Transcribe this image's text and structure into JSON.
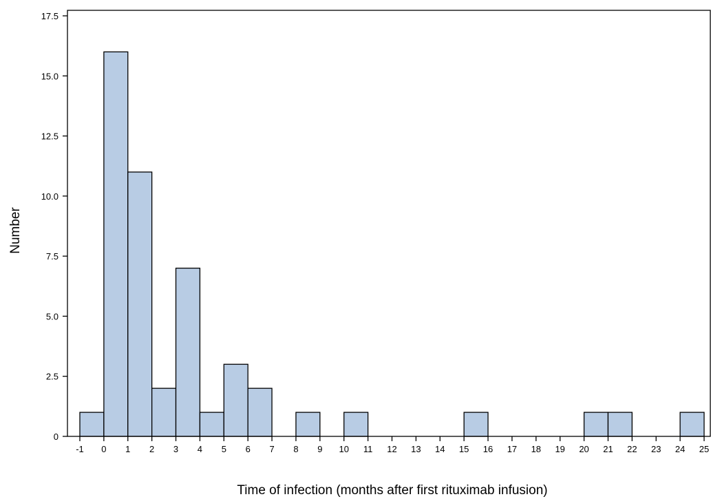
{
  "chart_data": {
    "type": "bar",
    "title": "",
    "xlabel": "Time of infection (months after first rituximab infusion)",
    "ylabel": "Number",
    "xlim": [
      -1,
      25
    ],
    "ylim": [
      0,
      17.5
    ],
    "x_ticks": [
      "-1",
      "0",
      "1",
      "2",
      "3",
      "4",
      "5",
      "6",
      "7",
      "8",
      "9",
      "10",
      "11",
      "12",
      "13",
      "14",
      "15",
      "16",
      "17",
      "18",
      "19",
      "20",
      "21",
      "22",
      "23",
      "24",
      "25"
    ],
    "y_ticks": [
      "0",
      "2.5",
      "5.0",
      "7.5",
      "10.0",
      "12.5",
      "15.0",
      "17.5"
    ],
    "bins": [
      {
        "start": -1,
        "end": 0,
        "value": 1
      },
      {
        "start": 0,
        "end": 1,
        "value": 16
      },
      {
        "start": 1,
        "end": 2,
        "value": 11
      },
      {
        "start": 2,
        "end": 3,
        "value": 2
      },
      {
        "start": 3,
        "end": 4,
        "value": 7
      },
      {
        "start": 4,
        "end": 5,
        "value": 1
      },
      {
        "start": 5,
        "end": 6,
        "value": 3
      },
      {
        "start": 6,
        "end": 7,
        "value": 2
      },
      {
        "start": 8,
        "end": 9,
        "value": 1
      },
      {
        "start": 10,
        "end": 11,
        "value": 1
      },
      {
        "start": 15,
        "end": 16,
        "value": 1
      },
      {
        "start": 20,
        "end": 21,
        "value": 1
      },
      {
        "start": 21,
        "end": 22,
        "value": 1
      },
      {
        "start": 24,
        "end": 25,
        "value": 1
      }
    ],
    "bar_color": "#b8cce4",
    "grid": false,
    "legend": "none"
  }
}
